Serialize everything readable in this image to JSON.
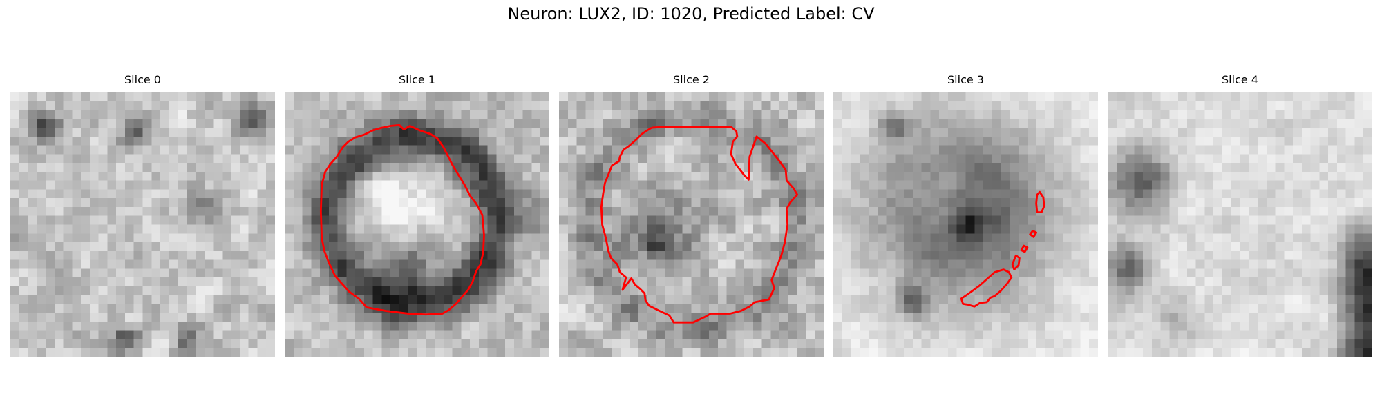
{
  "figure": {
    "title": "Neuron: LUX2, ID: 1020, Predicted Label: CV"
  },
  "colors": {
    "contour": "#ff0000",
    "background": "#ffffff"
  },
  "panels": [
    {
      "title": "Slice 0",
      "texture": "speckle-light"
    },
    {
      "title": "Slice 1",
      "texture": "ring-dark"
    },
    {
      "title": "Slice 2",
      "texture": "ring-light"
    },
    {
      "title": "Slice 3",
      "texture": "cell-dark"
    },
    {
      "title": "Slice 4",
      "texture": "edge-dark"
    }
  ]
}
